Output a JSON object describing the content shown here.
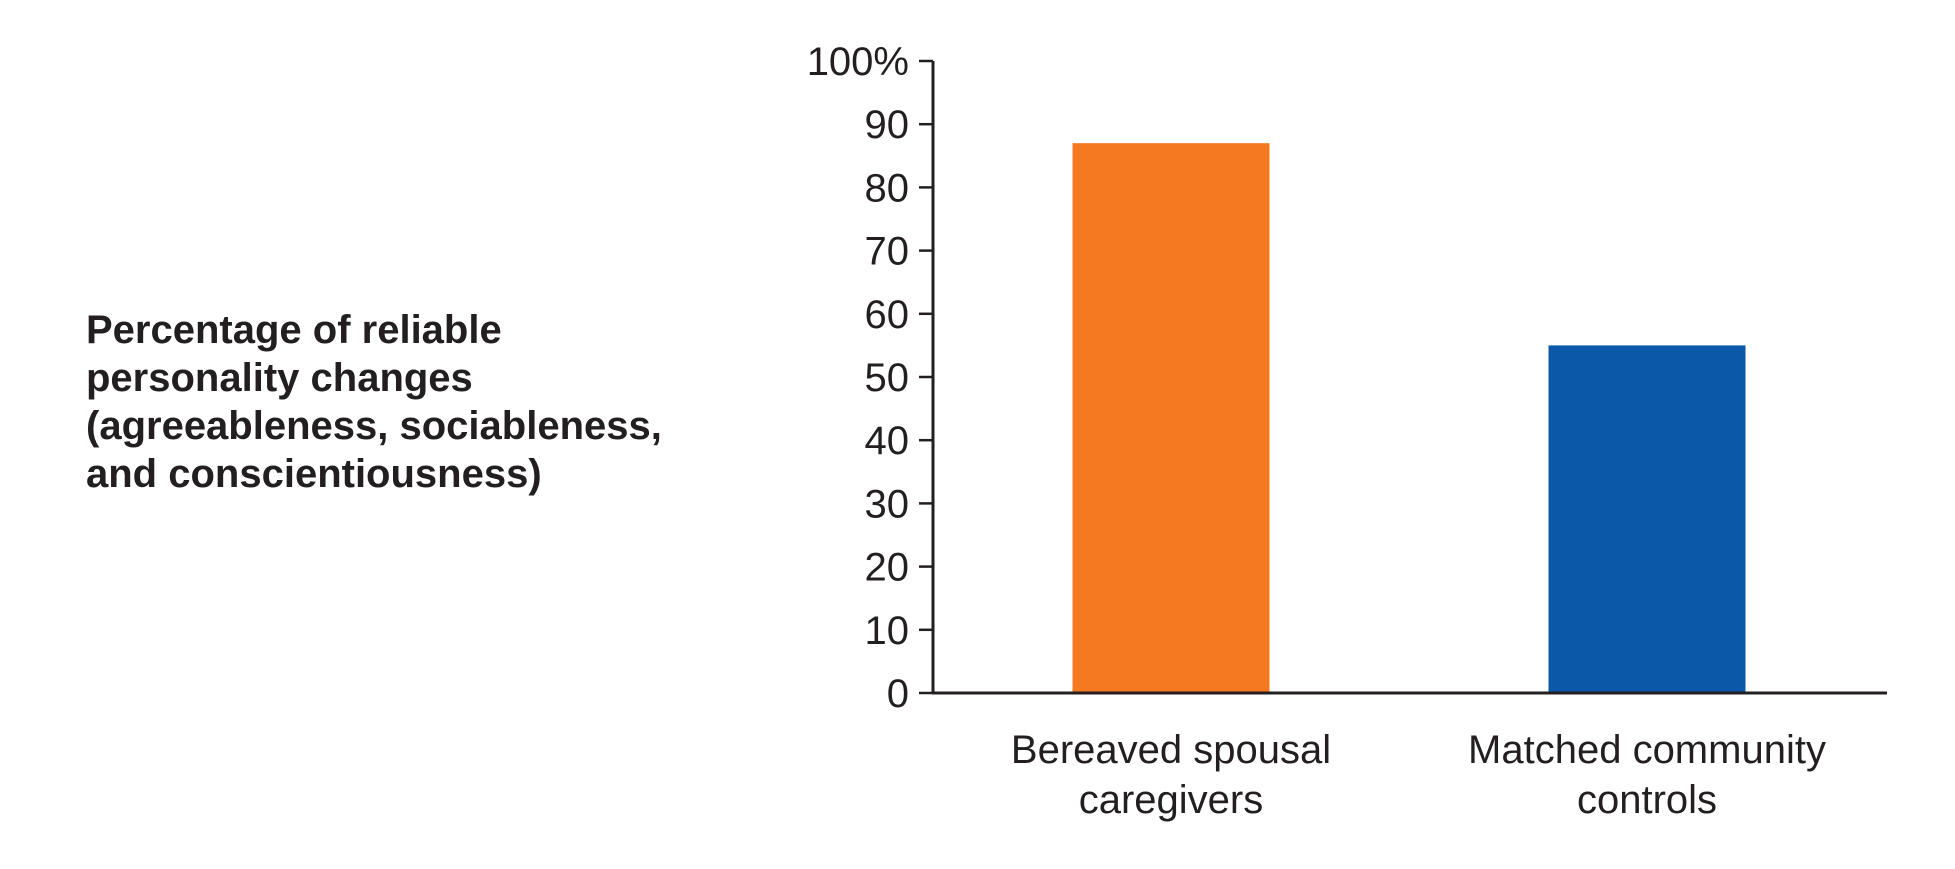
{
  "chart_data": {
    "type": "bar",
    "categories": [
      [
        "Bereaved spousal",
        "caregivers"
      ],
      [
        "Matched community",
        "controls"
      ]
    ],
    "values": [
      87,
      55
    ],
    "colors": [
      "#f47920",
      "#0b58a8"
    ],
    "ylabel_lines": [
      "Percentage of reliable",
      "personality changes",
      "(agreeableness, sociableness,",
      "and conscientiousness)"
    ],
    "ylim": [
      0,
      100
    ],
    "yticks": [
      0,
      10,
      20,
      30,
      40,
      50,
      60,
      70,
      80,
      90,
      100
    ],
    "ytick_labels": [
      "0",
      "10",
      "20",
      "30",
      "40",
      "50",
      "60",
      "70",
      "80",
      "90",
      "100%"
    ],
    "grid": false,
    "legend": "none"
  }
}
